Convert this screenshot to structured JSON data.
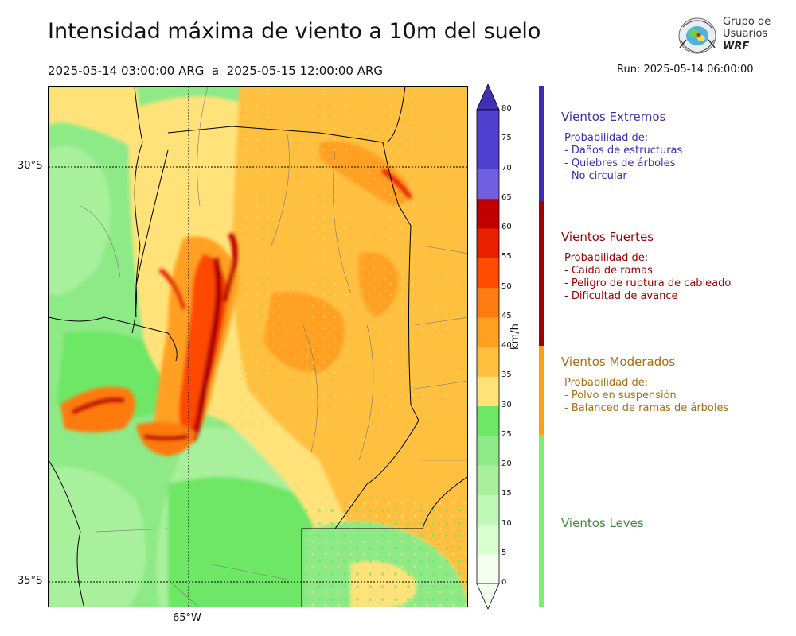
{
  "title": "Intensidad máxima de viento a 10m del suelo",
  "period": "2025-05-14 03:00:00 ARG  a  2025-05-15 12:00:00 ARG",
  "run": "Run: 2025-05-14 06:00:00",
  "logo": {
    "line1": "Grupo de",
    "line2": "Usuarios",
    "line3": "WRF"
  },
  "map": {
    "lat_labels": [
      "30°S",
      "35°S"
    ],
    "lon_labels": [
      "65°W"
    ],
    "field": "max 10m wind speed",
    "unit": "km/h"
  },
  "colorbar": {
    "unit": "km/h",
    "ticks": [
      "0",
      "5",
      "10",
      "15",
      "20",
      "25",
      "30",
      "35",
      "40",
      "45",
      "50",
      "55",
      "60",
      "65",
      "70",
      "75",
      "80"
    ],
    "colors": [
      "#f5fff0",
      "#d8ffd0",
      "#c0f8b6",
      "#a8f09c",
      "#8eea86",
      "#6ee666",
      "#ffe37a",
      "#ffc040",
      "#ffa020",
      "#ff7a10",
      "#ff4a00",
      "#e82000",
      "#c00000",
      "#a00000",
      "#7060e0",
      "#5040d0",
      "#4030b8"
    ],
    "extend": "both"
  },
  "legend": {
    "categories": [
      {
        "title": "Vientos Extremos",
        "color": "#3d2cb4",
        "items": [
          "Probabilidad de:",
          "- Daños de estructuras",
          "- Quiebres de árboles",
          "- No circular"
        ]
      },
      {
        "title": "Vientos Fuertes",
        "color": "#a00000",
        "items": [
          "Probabilidad de:",
          "- Caida de ramas",
          "- Peligro de ruptura de cableado",
          "- Dificultad de avance"
        ]
      },
      {
        "title": "Vientos Moderados",
        "color": "#a86f12",
        "items": [
          "Probabilidad de:",
          "- Polvo en suspensión",
          "- Balanceo de ramas de árboles"
        ]
      },
      {
        "title": "Vientos Leves",
        "color": "#3e8a3a",
        "items": []
      }
    ],
    "bar_colors": {
      "extreme": "#3d2cb4",
      "strong": "#a00000",
      "moderate": "#ffa010",
      "light": "#78f070"
    }
  }
}
